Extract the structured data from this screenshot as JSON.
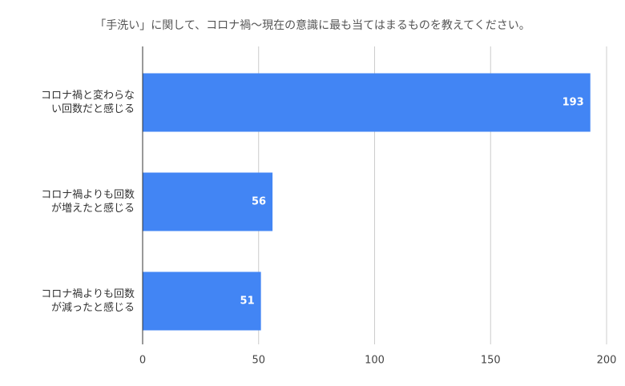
{
  "chart_data": {
    "type": "bar",
    "orientation": "horizontal",
    "title": "「手洗い」に関して、コロナ禍〜現在の意識に最も当てはまるものを教えてください。",
    "categories": [
      "コロナ禍と変わらない回数だと感じる",
      "コロナ禍よりも回数が増えたと感じる",
      "コロナ禍よりも回数が減ったと感じる"
    ],
    "values": [
      193,
      56,
      51
    ],
    "color": "#4285f4",
    "xlim": [
      0,
      200
    ],
    "xticks": [
      0,
      50,
      100,
      150,
      200
    ],
    "grid": true
  }
}
